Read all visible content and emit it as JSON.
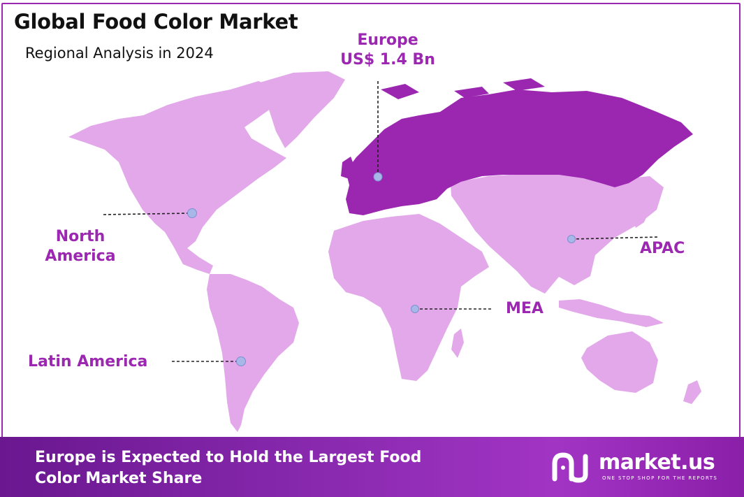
{
  "title": "Global Food Color Market",
  "subtitle": "Regional Analysis in 2024",
  "regions": {
    "europe": {
      "name": "Europe",
      "value": "US$ 1.4 Bn"
    },
    "north_america": {
      "name_line1": "North",
      "name_line2": "America"
    },
    "apac": {
      "name": "APAC"
    },
    "mea": {
      "name": "MEA"
    },
    "latin_america": {
      "name": "Latin America"
    }
  },
  "footer": {
    "line1": "Europe is Expected to Hold the Largest Food",
    "line2": "Color Market Share"
  },
  "brand": {
    "name": "market.us",
    "tagline": "ONE STOP SHOP FOR THE REPORTS"
  },
  "colors": {
    "highlight_region": "#9b27b0",
    "other_regions": "#e2a8ea",
    "label": "#9c27b0",
    "marker": "#a7b8e8"
  }
}
